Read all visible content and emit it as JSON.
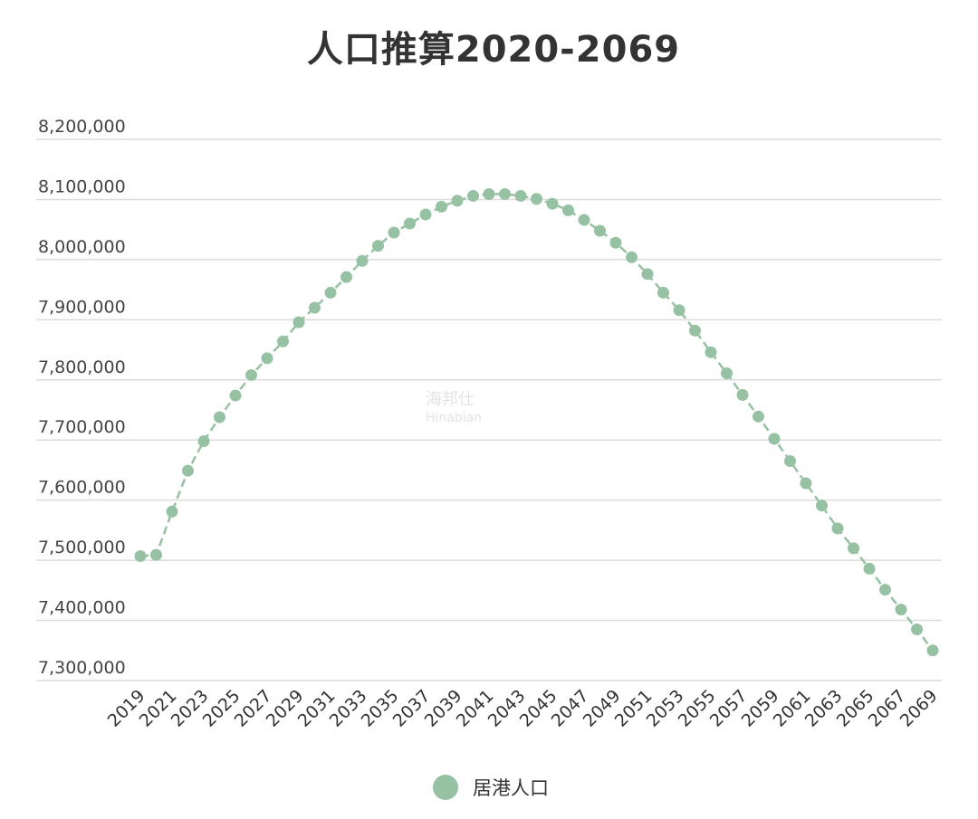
{
  "chart_data": {
    "type": "line",
    "title": "人口推算2020-2069",
    "xlabel": "",
    "ylabel": "",
    "x": [
      2019,
      2020,
      2021,
      2022,
      2023,
      2024,
      2025,
      2026,
      2027,
      2028,
      2029,
      2030,
      2031,
      2032,
      2033,
      2034,
      2035,
      2036,
      2037,
      2038,
      2039,
      2040,
      2041,
      2042,
      2043,
      2044,
      2045,
      2046,
      2047,
      2048,
      2049,
      2050,
      2051,
      2052,
      2053,
      2054,
      2055,
      2056,
      2057,
      2058,
      2059,
      2060,
      2061,
      2062,
      2063,
      2064,
      2065,
      2066,
      2067,
      2068,
      2069
    ],
    "x_tick_labels": [
      "2019",
      "2021",
      "2023",
      "2025",
      "2027",
      "2029",
      "2031",
      "2033",
      "2035",
      "2037",
      "2039",
      "2041",
      "2043",
      "2045",
      "2047",
      "2049",
      "2051",
      "2053",
      "2055",
      "2057",
      "2059",
      "2061",
      "2063",
      "2065",
      "2067",
      "2069"
    ],
    "y_tick_labels": [
      "8,200,000",
      "8,100,000",
      "8,000,000",
      "7,900,000",
      "7,800,000",
      "7,700,000",
      "7,600,000",
      "7,500,000",
      "7,400,000",
      "7,300,000"
    ],
    "ylim": [
      7300000,
      8200000
    ],
    "grid": true,
    "legend_position": "bottom",
    "series": [
      {
        "name": "居港人口",
        "color": "#96c1a3",
        "values": [
          7507000,
          7509000,
          7581000,
          7649000,
          7698000,
          7738000,
          7774000,
          7808000,
          7836000,
          7864000,
          7896000,
          7920000,
          7945000,
          7971000,
          7998000,
          8023000,
          8045000,
          8060000,
          8075000,
          8088000,
          8098000,
          8106000,
          8109000,
          8109000,
          8106000,
          8101000,
          8093000,
          8082000,
          8066000,
          8048000,
          8028000,
          8004000,
          7976000,
          7945000,
          7916000,
          7882000,
          7846000,
          7811000,
          7775000,
          7739000,
          7702000,
          7665000,
          7628000,
          7591000,
          7553000,
          7520000,
          7486000,
          7451000,
          7418000,
          7385000,
          7350000
        ]
      }
    ]
  },
  "watermark": {
    "line1": "海邦仕",
    "line2": "Hinabian"
  }
}
